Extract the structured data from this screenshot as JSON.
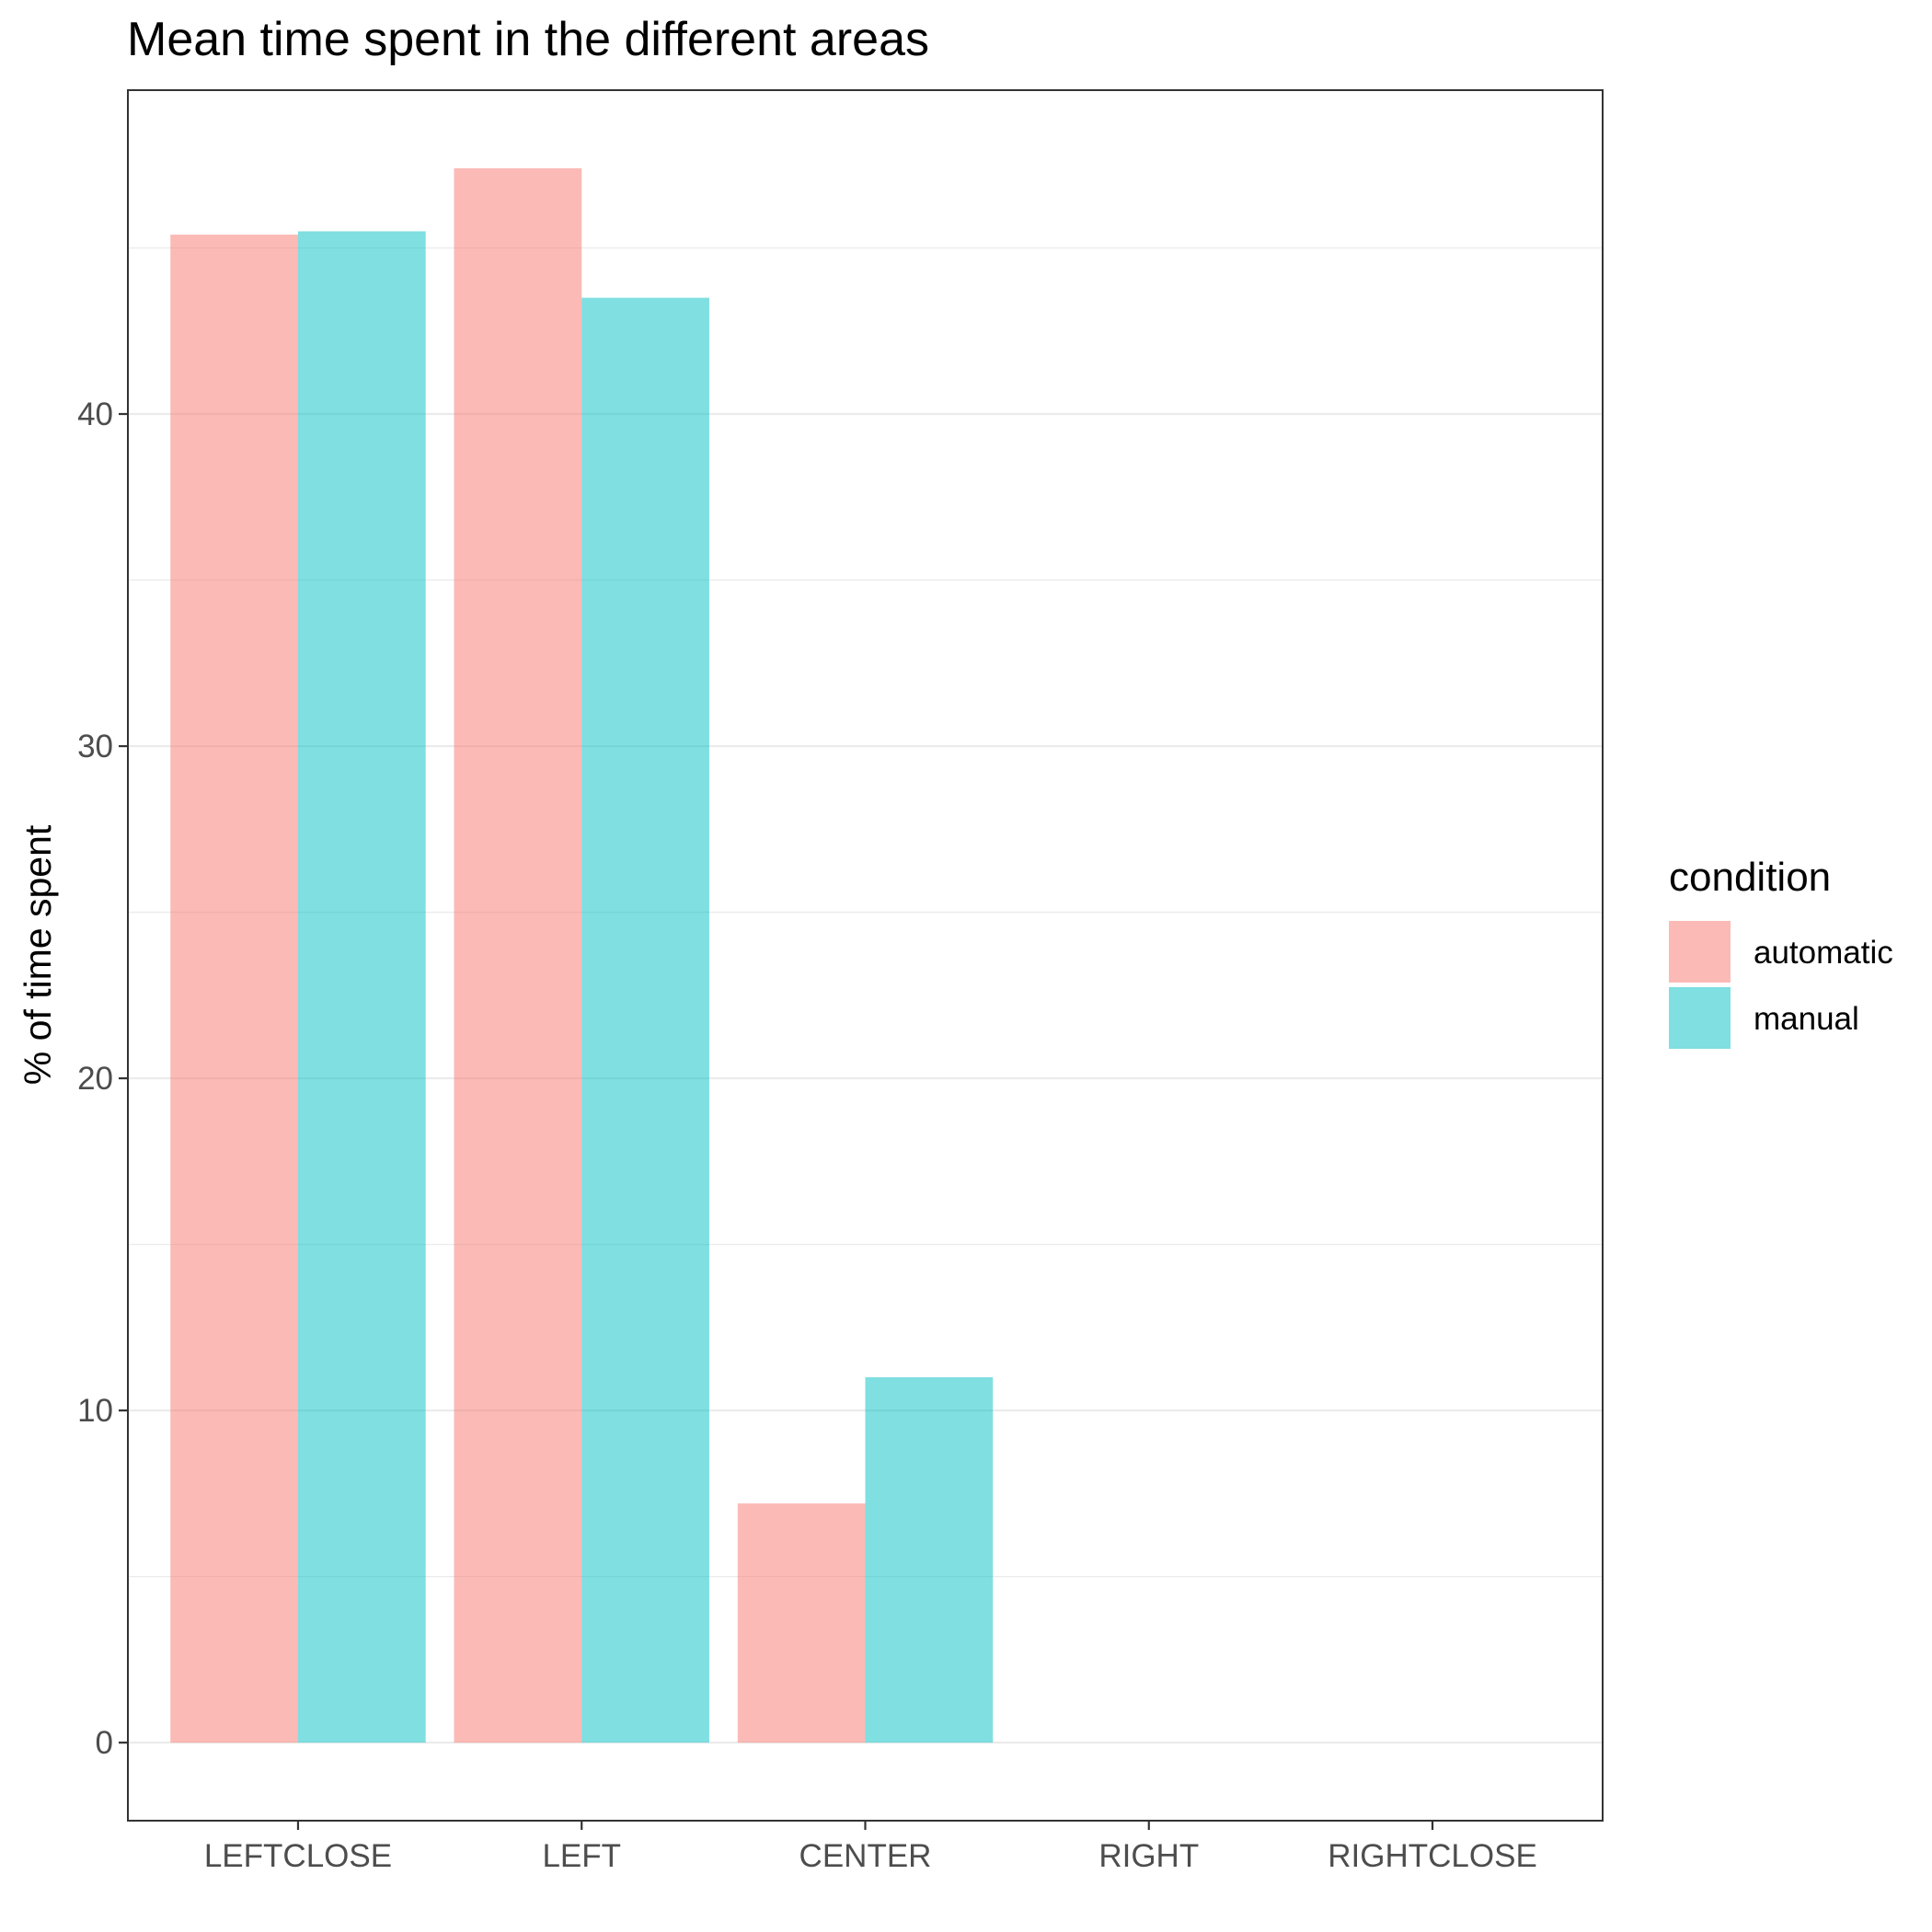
{
  "chart_data": {
    "type": "bar",
    "title": "Mean time spent in the different areas",
    "xlabel": "",
    "ylabel": "% of time spent",
    "categories": [
      "LEFTCLOSE",
      "LEFT",
      "CENTER",
      "RIGHT",
      "RIGHTCLOSE"
    ],
    "series": [
      {
        "name": "automatic",
        "color": "#F8766D",
        "values": [
          45.4,
          47.4,
          7.2,
          0,
          0
        ]
      },
      {
        "name": "manual",
        "color": "#00BFC4",
        "values": [
          45.5,
          43.5,
          11.0,
          0,
          0
        ]
      }
    ],
    "ylim": [
      -2.35,
      49.75
    ],
    "yticks": [
      0,
      10,
      20,
      30,
      40
    ],
    "grid": true,
    "bar_alpha": 0.5,
    "legend": {
      "title": "condition",
      "position": "right"
    }
  }
}
